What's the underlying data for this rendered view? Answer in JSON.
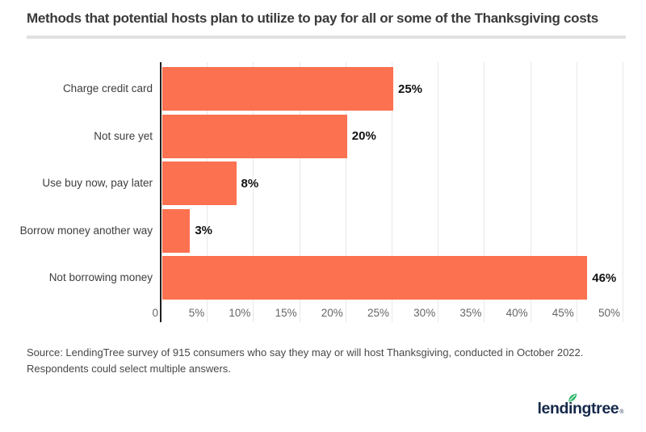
{
  "page": {
    "title": "Methods that potential hosts plan to utilize to pay for all or some of the Thanksgiving costs",
    "source_line1": "Source: LendingTree survey of 915 consumers who say they may or will host Thanksgiving, conducted in October 2022.",
    "source_line2": "Respondents could select multiple answers.",
    "logo": {
      "text": "lendingtree",
      "registered": "®"
    }
  },
  "colors": {
    "bar": "#fc7150",
    "axis_line": "#1f1f1f",
    "gridline": "#e8e8e8",
    "tick_text": "#666666",
    "category_text": "#3d3d3d",
    "value_text": "#111111",
    "title_text": "#3a3a3a",
    "divider": "#e1e1e1",
    "source_text": "#484848",
    "logo_navy": "#16294b",
    "logo_green": "#2cb669"
  },
  "chart_data": {
    "type": "bar",
    "orientation": "horizontal",
    "title": "Methods that potential hosts plan to utilize to pay for all or some of the Thanksgiving costs",
    "categories": [
      "Charge credit card",
      "Not sure yet",
      "Use buy now, pay later",
      "Borrow money another way",
      "Not borrowing money"
    ],
    "values": [
      25,
      20,
      8,
      3,
      46
    ],
    "value_labels": [
      "25%",
      "20%",
      "8%",
      "3%",
      "46%"
    ],
    "xlabel": "",
    "ylabel": "",
    "xlim": [
      0,
      50
    ],
    "x_ticks": [
      {
        "value": 0,
        "label": "0"
      },
      {
        "value": 5,
        "label": "5%"
      },
      {
        "value": 10,
        "label": "10%"
      },
      {
        "value": 15,
        "label": "15%"
      },
      {
        "value": 20,
        "label": "20%"
      },
      {
        "value": 25,
        "label": "25%"
      },
      {
        "value": 30,
        "label": "30%"
      },
      {
        "value": 35,
        "label": "35%"
      },
      {
        "value": 40,
        "label": "40%"
      },
      {
        "value": 45,
        "label": "45%"
      },
      {
        "value": 50,
        "label": "50%"
      }
    ],
    "grid": "vertical",
    "legend": "none"
  }
}
